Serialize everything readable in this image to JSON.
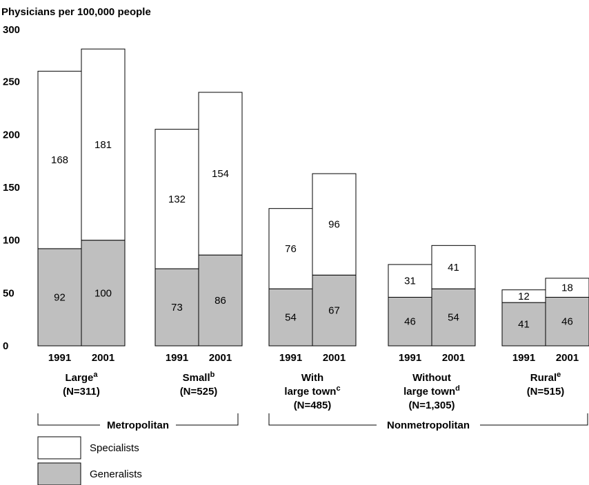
{
  "chart_data": {
    "type": "bar",
    "stacked": true,
    "ylabel": "Physicians per 100,000 people",
    "ylim": [
      0,
      300
    ],
    "yticks": [
      0,
      50,
      100,
      150,
      200,
      250,
      300
    ],
    "years": [
      "1991",
      "2001"
    ],
    "groups": [
      {
        "label_lines": [
          "Large"
        ],
        "sup": "a",
        "n": "(N=311)"
      },
      {
        "label_lines": [
          "Small"
        ],
        "sup": "b",
        "n": "(N=525)"
      },
      {
        "label_lines": [
          "With",
          "large town"
        ],
        "sup": "c",
        "n": "(N=485)"
      },
      {
        "label_lines": [
          "Without",
          "large town"
        ],
        "sup": "d",
        "n": "(N=1,305)"
      },
      {
        "label_lines": [
          "Rural"
        ],
        "sup": "e",
        "n": "(N=515)"
      }
    ],
    "series": [
      {
        "name": "Generalists",
        "color": "#bfbfbf",
        "values": [
          [
            92,
            100
          ],
          [
            73,
            86
          ],
          [
            54,
            67
          ],
          [
            46,
            54
          ],
          [
            41,
            46
          ]
        ]
      },
      {
        "name": "Specialists",
        "color": "#ffffff",
        "values": [
          [
            168,
            181
          ],
          [
            132,
            154
          ],
          [
            76,
            96
          ],
          [
            31,
            41
          ],
          [
            12,
            18
          ]
        ]
      }
    ],
    "brackets": [
      {
        "label": "Metropolitan",
        "groups": [
          0,
          1
        ]
      },
      {
        "label": "Nonmetropolitan",
        "groups": [
          2,
          4
        ]
      }
    ],
    "legend": [
      {
        "name": "Specialists",
        "color": "#ffffff"
      },
      {
        "name": "Generalists",
        "color": "#bfbfbf"
      }
    ]
  }
}
